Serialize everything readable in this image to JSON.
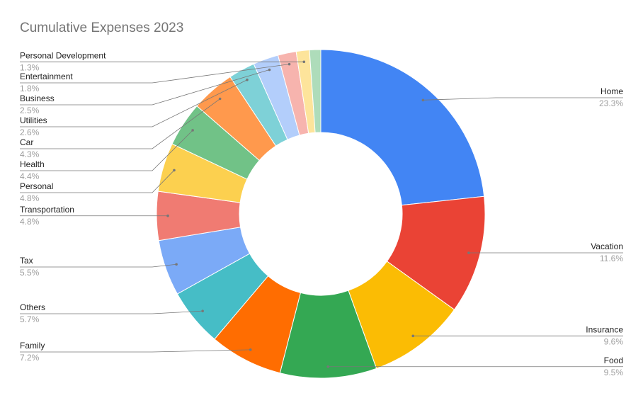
{
  "chart_data": {
    "type": "donut",
    "title": "Cumulative Expenses 2023",
    "categories": [
      "Home",
      "Vacation",
      "Insurance",
      "Food",
      "Family",
      "Others",
      "Tax",
      "Transportation",
      "Personal",
      "Health",
      "Car",
      "Utilities",
      "Business",
      "Entertainment",
      "Personal Development",
      null
    ],
    "values": [
      23.3,
      11.6,
      9.6,
      9.5,
      7.2,
      5.7,
      5.5,
      4.8,
      4.8,
      4.4,
      4.3,
      2.6,
      2.5,
      1.8,
      1.3,
      1.1
    ],
    "value_labels": [
      "23.3%",
      "11.6%",
      "9.6%",
      "9.5%",
      "7.2%",
      "5.7%",
      "5.5%",
      "4.8%",
      "4.8%",
      "4.4%",
      "4.3%",
      "2.6%",
      "2.5%",
      "1.8%",
      "1.3%",
      null
    ],
    "colors": [
      "#4285f4",
      "#ea4335",
      "#fbbc04",
      "#34a853",
      "#ff6d01",
      "#46bdc6",
      "#7baaf7",
      "#f07b72",
      "#fcd04f",
      "#71c287",
      "#ff994d",
      "#7ed1d7",
      "#b3cefb",
      "#f7b4ae",
      "#fde49b",
      "#aedcba"
    ]
  }
}
